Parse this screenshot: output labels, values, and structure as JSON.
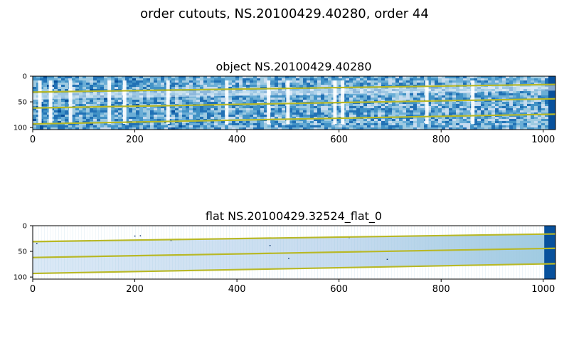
{
  "figure": {
    "suptitle": "order cutouts, NS.20100429.40280, order 44"
  },
  "colors": {
    "trace": "#b8b826",
    "image_light": "#eaf3fb",
    "image_dark": "#08519c",
    "flat_band": "#c6dbef",
    "flat_band_right": "#9ecae1"
  },
  "chart_data": [
    {
      "type": "heatmap",
      "title": "object NS.20100429.40280",
      "xlim": [
        0,
        1024
      ],
      "ylim": [
        104,
        0
      ],
      "xticks": [
        0,
        200,
        400,
        600,
        800,
        1000
      ],
      "yticks": [
        0,
        50,
        100
      ],
      "colormap": "Blues",
      "sky_lines_x": [
        14,
        35,
        74,
        150,
        180,
        265,
        380,
        462,
        500,
        592,
        607,
        772,
        862
      ],
      "traces": [
        {
          "x": [
            0,
            1024
          ],
          "y": [
            31,
            16
          ]
        },
        {
          "x": [
            0,
            1024
          ],
          "y": [
            62,
            44
          ]
        },
        {
          "x": [
            0,
            1024
          ],
          "y": [
            93,
            74
          ]
        }
      ]
    },
    {
      "type": "heatmap",
      "title": "flat NS.20100429.32524_flat_0",
      "xlim": [
        0,
        1024
      ],
      "ylim": [
        104,
        0
      ],
      "xticks": [
        0,
        200,
        400,
        600,
        800,
        1000
      ],
      "yticks": [
        0,
        50,
        100
      ],
      "colormap": "Blues",
      "traces": [
        {
          "x": [
            0,
            1024
          ],
          "y": [
            31,
            16
          ]
        },
        {
          "x": [
            0,
            1024
          ],
          "y": [
            62,
            44
          ]
        },
        {
          "x": [
            0,
            1024
          ],
          "y": [
            93,
            74
          ]
        }
      ]
    }
  ]
}
